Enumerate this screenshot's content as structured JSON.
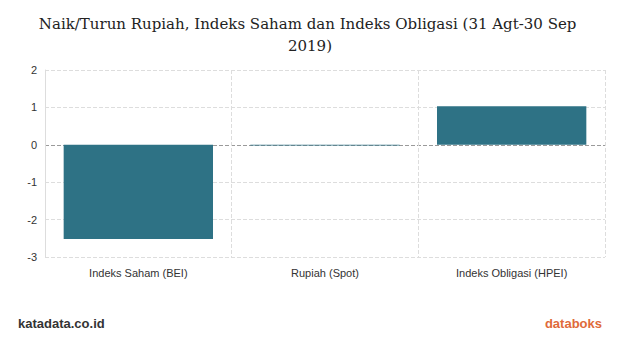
{
  "chart_data": {
    "type": "bar",
    "title": "Naik/Turun Rupiah, Indeks Saham dan Indeks Obligasi (31 Agt-30 Sep 2019)",
    "categories": [
      "Indeks Saham (BEI)",
      "Rupiah (Spot)",
      "Indeks Obligasi (HPEI)"
    ],
    "values": [
      -2.52,
      -0.02,
      1.03
    ],
    "color": "#2e7285",
    "ylim": [
      -3,
      2
    ],
    "yticks": [
      -3,
      -2,
      -1,
      0,
      1,
      2
    ],
    "grid": true,
    "annotations": [
      "katadata.co.id",
      "databoks"
    ]
  }
}
